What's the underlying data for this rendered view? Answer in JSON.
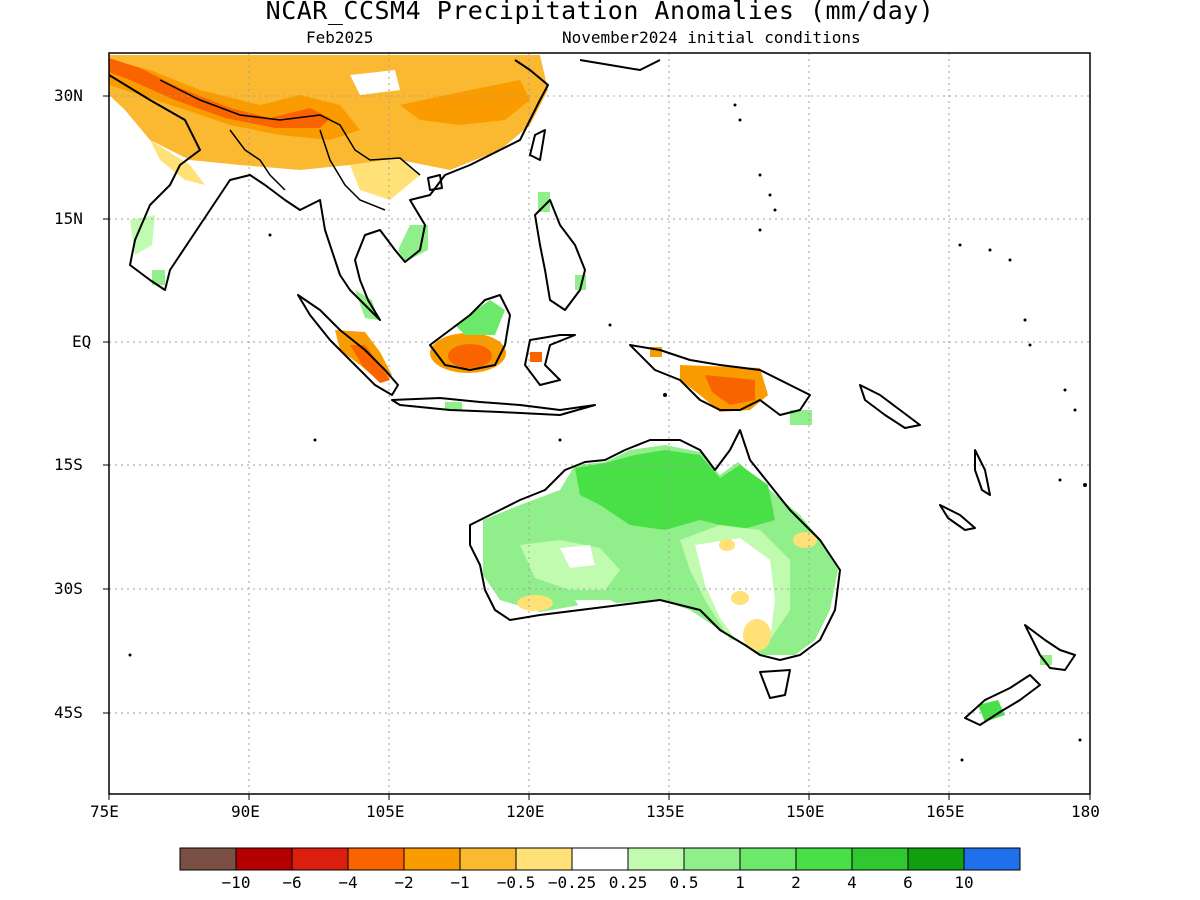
{
  "title": "NCAR_CCSM4 Precipitation Anomalies (mm/day)",
  "subtitle_left": "Feb2025",
  "subtitle_right": "November2024 initial conditions",
  "lat_labels": [
    "30N",
    "15N",
    "EQ",
    "15S",
    "30S",
    "45S"
  ],
  "lon_labels": [
    "75E",
    "90E",
    "105E",
    "120E",
    "135E",
    "150E",
    "165E",
    "180"
  ],
  "colorbar": {
    "colors": [
      "#7a5045",
      "#b40000",
      "#dc1e0f",
      "#fa6400",
      "#fa9b00",
      "#fbb932",
      "#ffe178",
      "#ffffff",
      "#c0fbb0",
      "#90ef8a",
      "#6ce86a",
      "#48e046",
      "#30c830",
      "#10a010",
      "#2070ec"
    ],
    "tick_labels": [
      "−10",
      "−6",
      "−4",
      "−2",
      "−1",
      "−0.5",
      "−0.25",
      "0.25",
      "0.5",
      "1",
      "2",
      "4",
      "6",
      "10"
    ]
  }
}
